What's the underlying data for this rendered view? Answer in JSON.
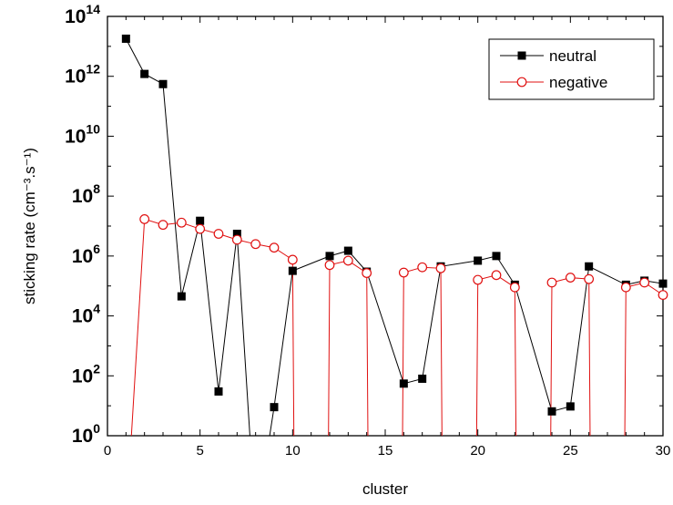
{
  "chart_data": {
    "type": "line",
    "xlabel": "cluster",
    "ylabel": "sticking rate (cm⁻³.s⁻¹)",
    "xlim": [
      0,
      30
    ],
    "ylim_exp": [
      0,
      14
    ],
    "yscale": "log",
    "xticks": [
      0,
      5,
      10,
      15,
      20,
      25,
      30
    ],
    "yticks": [
      "10^0",
      "10^2",
      "10^4",
      "10^6",
      "10^8",
      "10^10",
      "10^12",
      "10^14"
    ],
    "legend_position": "top-right",
    "series": [
      {
        "name": "neutral",
        "color": "#000000",
        "marker": "filled-square",
        "points": [
          [
            1,
            18000000000000.0
          ],
          [
            2,
            1200000000000.0
          ],
          [
            3,
            550000000000.0
          ],
          [
            4,
            45000.0
          ],
          [
            5,
            15000000.0
          ],
          [
            6,
            30
          ],
          [
            7,
            5500000.0
          ],
          [
            8,
            0.001
          ],
          [
            9,
            9
          ],
          [
            10,
            320000.0
          ],
          [
            12,
            1000000.0
          ],
          [
            13,
            1500000.0
          ],
          [
            14,
            300000.0
          ],
          [
            16,
            55
          ],
          [
            17,
            80
          ],
          [
            18,
            450000.0
          ],
          [
            20,
            700000.0
          ],
          [
            21,
            1000000.0
          ],
          [
            22,
            110000.0
          ],
          [
            24,
            6.5
          ],
          [
            25,
            9.5
          ],
          [
            26,
            450000.0
          ],
          [
            28,
            110000.0
          ],
          [
            29,
            150000.0
          ],
          [
            30,
            120000.0
          ]
        ]
      },
      {
        "name": "negative",
        "color": "#e01010",
        "marker": "open-circle",
        "points": [
          [
            1,
            0.001
          ],
          [
            2,
            17000000.0
          ],
          [
            3,
            11000000.0
          ],
          [
            4,
            13000000.0
          ],
          [
            5,
            8000000.0
          ],
          [
            6,
            5500000.0
          ],
          [
            7,
            3500000.0
          ],
          [
            8,
            2500000.0
          ],
          [
            9,
            1900000.0
          ],
          [
            10,
            750000.0
          ],
          [
            10.1,
            0.001
          ],
          [
            11.9,
            0.001
          ],
          [
            12,
            500000.0
          ],
          [
            13,
            700000.0
          ],
          [
            14,
            270000.0
          ],
          [
            14.1,
            0.001
          ],
          [
            15.9,
            0.001
          ],
          [
            16,
            280000.0
          ],
          [
            17,
            420000.0
          ],
          [
            18,
            390000.0
          ],
          [
            18.1,
            0.001
          ],
          [
            19.9,
            0.001
          ],
          [
            20,
            160000.0
          ],
          [
            21,
            230000.0
          ],
          [
            22,
            90000.0
          ],
          [
            22.1,
            0.001
          ],
          [
            23.9,
            0.001
          ],
          [
            24,
            130000.0
          ],
          [
            25,
            190000.0
          ],
          [
            26,
            170000.0
          ],
          [
            26.1,
            0.001
          ],
          [
            27.9,
            0.001
          ],
          [
            28,
            90000.0
          ],
          [
            29,
            130000.0
          ],
          [
            30,
            50000.0
          ]
        ]
      }
    ]
  }
}
